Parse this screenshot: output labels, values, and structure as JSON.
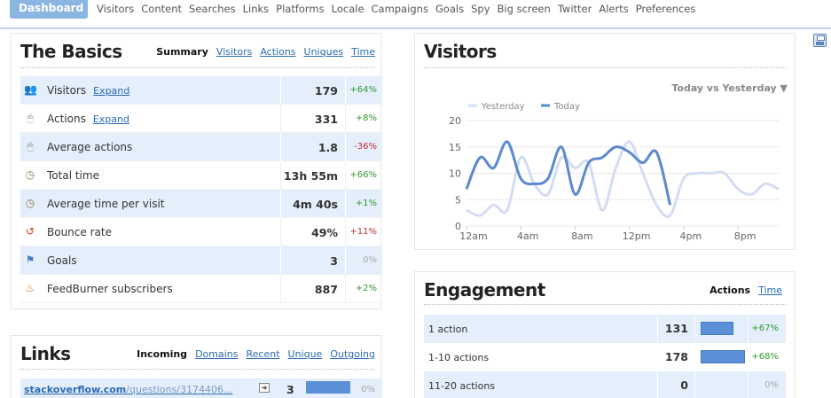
{
  "nav": {
    "active": "Dashboard",
    "items": [
      "Visitors",
      "Content",
      "Searches",
      "Links",
      "Platforms",
      "Locale",
      "Campaigns",
      "Goals",
      "Spy",
      "Big screen",
      "Twitter",
      "Alerts",
      "Preferences"
    ]
  },
  "basics": {
    "title": "The Basics",
    "tabs": [
      {
        "label": "Summary",
        "active": true
      },
      {
        "label": "Visitors",
        "active": false
      },
      {
        "label": "Actions",
        "active": false
      },
      {
        "label": "Uniques",
        "active": false
      },
      {
        "label": "Time",
        "active": false
      }
    ],
    "rows": [
      {
        "icon": "visitors-icon",
        "label": "Visitors",
        "link": "Expand",
        "value": "179",
        "change": "+64%",
        "trend": "up"
      },
      {
        "icon": "mouse-icon",
        "label": "Actions",
        "link": "Expand",
        "value": "331",
        "change": "+8%",
        "trend": "up"
      },
      {
        "icon": "mouse-icon",
        "label": "Average actions",
        "link": "",
        "value": "1.8",
        "change": "-36%",
        "trend": "down"
      },
      {
        "icon": "clock-icon",
        "label": "Total time",
        "link": "",
        "value": "13h 55m",
        "change": "+66%",
        "trend": "up"
      },
      {
        "icon": "clock-icon",
        "label": "Average time per visit",
        "link": "",
        "value": "4m 40s",
        "change": "+1%",
        "trend": "up"
      },
      {
        "icon": "bounce-icon",
        "label": "Bounce rate",
        "link": "",
        "value": "49%",
        "change": "+11%",
        "trend": "down"
      },
      {
        "icon": "goal-flag-icon",
        "label": "Goals",
        "link": "",
        "value": "3",
        "change": "0%",
        "trend": "zero"
      },
      {
        "icon": "feedburner-icon",
        "label": "FeedBurner subscribers",
        "link": "",
        "value": "887",
        "change": "+2%",
        "trend": "up"
      }
    ]
  },
  "links": {
    "title": "Links",
    "tabs": [
      {
        "label": "Incoming",
        "active": true
      },
      {
        "label": "Domains",
        "active": false
      },
      {
        "label": "Recent",
        "active": false
      },
      {
        "label": "Unique",
        "active": false
      },
      {
        "label": "Outgoing",
        "active": false
      }
    ],
    "rows": [
      {
        "site": "stackoverflow.com",
        "path": "/questions/3174406...",
        "value": "3",
        "change": "0%",
        "share": 1.0
      }
    ]
  },
  "visitors_panel": {
    "title": "Visitors",
    "compare_select": "Today vs Yesterday ▼"
  },
  "engagement": {
    "title": "Engagement",
    "tabs": [
      {
        "label": "Actions",
        "active": true
      },
      {
        "label": "Time",
        "active": false
      }
    ],
    "rows": [
      {
        "label": "1 action",
        "value": "131",
        "change": "+67%",
        "trend": "up",
        "share": 0.73
      },
      {
        "label": "1-10 actions",
        "value": "178",
        "change": "+68%",
        "trend": "up",
        "share": 1.0
      },
      {
        "label": "11-20 actions",
        "value": "0",
        "change": "0%",
        "trend": "zero",
        "share": 0
      }
    ]
  },
  "chart_data": {
    "type": "line",
    "title": "",
    "xlabel": "",
    "ylabel": "",
    "x_ticks": [
      "12am",
      "4am",
      "8am",
      "12pm",
      "4pm",
      "8pm"
    ],
    "y_ticks": [
      0,
      5,
      10,
      15,
      20
    ],
    "ylim": [
      0,
      20
    ],
    "x_hours_range": [
      0,
      23
    ],
    "legend_position": "top-left",
    "grid": true,
    "series": [
      {
        "name": "Yesterday",
        "color": "#d4dcf4",
        "hours": [
          0,
          1,
          2,
          3,
          4,
          5,
          6,
          7,
          8,
          9,
          10,
          11,
          12,
          13,
          14,
          15,
          16,
          17,
          18,
          19,
          20,
          21,
          22,
          23
        ],
        "values": [
          3,
          2,
          4,
          3,
          13,
          8,
          6,
          13,
          11,
          12,
          3,
          11,
          16,
          10,
          4,
          2,
          9,
          10,
          10,
          10,
          7,
          6,
          8,
          7
        ]
      },
      {
        "name": "Today",
        "color": "#5b8ad0",
        "hours": [
          0,
          1,
          2,
          3,
          4,
          5,
          6,
          7,
          8,
          9,
          10,
          11,
          12,
          13,
          14,
          15
        ],
        "values": [
          7,
          13,
          11,
          16,
          9,
          8,
          9,
          15,
          6,
          12,
          13,
          15,
          14,
          12,
          14,
          4
        ]
      }
    ]
  }
}
